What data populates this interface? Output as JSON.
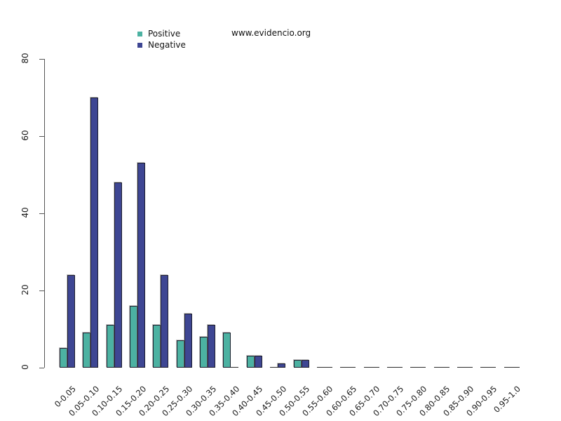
{
  "watermark": "www.evidencio.org",
  "chart_data": {
    "type": "bar",
    "title": "",
    "xlabel": "",
    "ylabel": "",
    "categories": [
      "0-0.05",
      "0.05-0.10",
      "0.10-0.15",
      "0.15-0.20",
      "0.20-0.25",
      "0.25-0.30",
      "0.30-0.35",
      "0.35-0.40",
      "0.40-0.45",
      "0.45-0.50",
      "0.50-0.55",
      "0.55-0.60",
      "0.60-0.65",
      "0.65-0.70",
      "0.70-0.75",
      "0.75-0.80",
      "0.80-0.85",
      "0.85-0.90",
      "0.90-0.95",
      "0.95-1.0"
    ],
    "series": [
      {
        "name": "Positive",
        "color": "#4cb2a2",
        "values": [
          5,
          9,
          11,
          16,
          11,
          7,
          8,
          9,
          3,
          0,
          2,
          0,
          0,
          0,
          0,
          0,
          0,
          0,
          0,
          0
        ]
      },
      {
        "name": "Negative",
        "color": "#3e4693",
        "values": [
          24,
          70,
          48,
          53,
          24,
          14,
          11,
          0,
          3,
          1,
          2,
          0,
          0,
          0,
          0,
          0,
          0,
          0,
          0,
          0
        ]
      }
    ],
    "ylim": [
      0,
      80
    ],
    "yticks": [
      0,
      20,
      40,
      60,
      80
    ],
    "grid": false,
    "legend_position": "top-left",
    "axis_color": "#555555",
    "bar_border_color": "#1f1f2e"
  }
}
